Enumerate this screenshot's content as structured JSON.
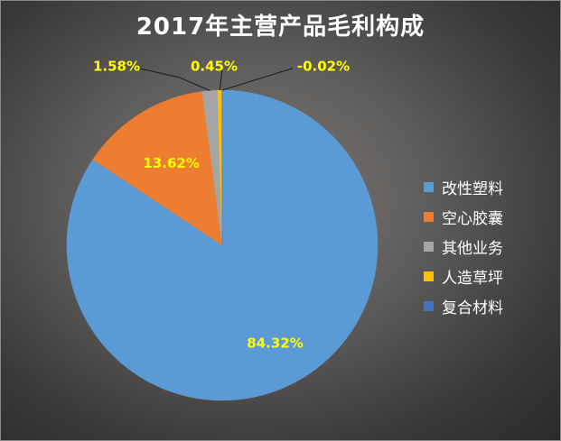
{
  "chart_data": {
    "type": "pie",
    "title": "2017年主营产品毛利构成",
    "series": [
      {
        "name": "改性塑料",
        "value": 84.32,
        "label": "84.32%",
        "color": "#5B9BD5"
      },
      {
        "name": "空心胶囊",
        "value": 13.62,
        "label": "13.62%",
        "color": "#ED7D31"
      },
      {
        "name": "其他业务",
        "value": 1.58,
        "label": "1.58%",
        "color": "#A5A5A5"
      },
      {
        "name": "人造草坪",
        "value": 0.45,
        "label": "0.45%",
        "color": "#FFC000"
      },
      {
        "name": "复合材料",
        "value": -0.02,
        "label": "-0.02%",
        "color": "#4472C4"
      }
    ],
    "legend_position": "right",
    "label_color": "#FFFF00"
  }
}
